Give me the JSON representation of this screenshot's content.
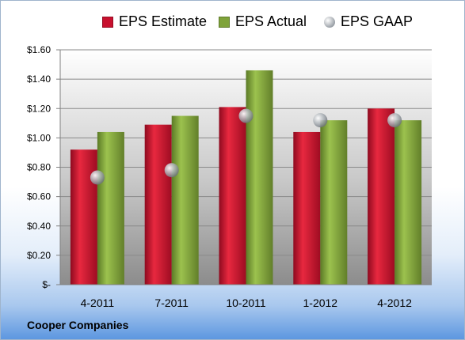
{
  "legend": {
    "estimate": "EPS Estimate",
    "actual": "EPS Actual",
    "gaap": "EPS GAAP"
  },
  "company": "Cooper Companies",
  "colors": {
    "estimate": "#c8102e",
    "actual": "#7fa33a",
    "gaap": "#a0a6ad"
  },
  "chart_data": {
    "type": "bar",
    "categories": [
      "4-2011",
      "7-2011",
      "10-2011",
      "1-2012",
      "4-2012"
    ],
    "series": [
      {
        "name": "EPS Estimate",
        "values": [
          0.92,
          1.09,
          1.21,
          1.04,
          1.2
        ]
      },
      {
        "name": "EPS Actual",
        "values": [
          1.04,
          1.15,
          1.46,
          1.12,
          1.12
        ]
      },
      {
        "name": "EPS GAAP",
        "values": [
          0.73,
          0.78,
          1.15,
          1.12,
          1.12
        ]
      }
    ],
    "ylim": [
      0,
      1.6
    ],
    "yticks": [
      "$-",
      "$0.20",
      "$0.40",
      "$0.60",
      "$0.80",
      "$1.00",
      "$1.20",
      "$1.40",
      "$1.60"
    ],
    "grid": true,
    "legend_position": "top"
  }
}
